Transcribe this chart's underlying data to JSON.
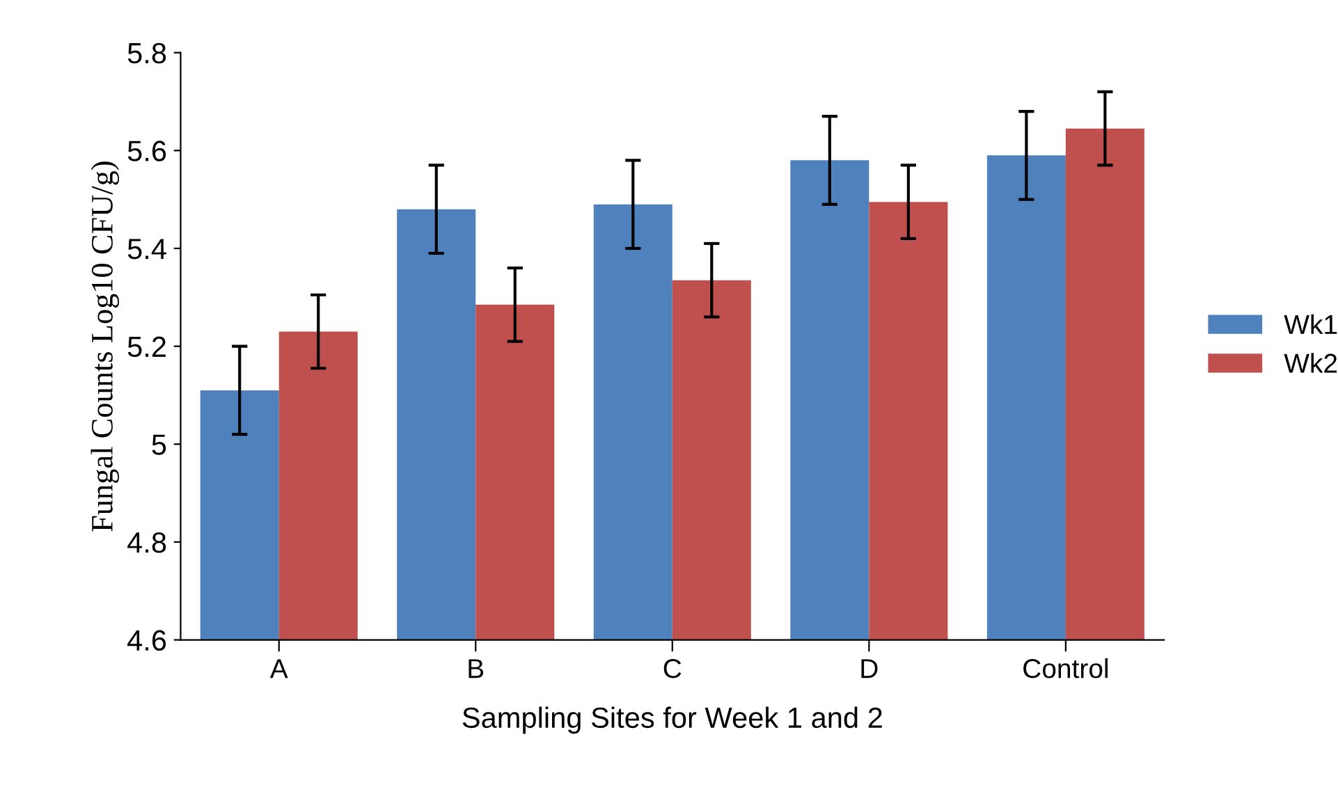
{
  "chart_data": {
    "type": "bar",
    "xlabel": "Sampling Sites for Week 1 and 2",
    "ylabel": "Fungal Counts Log10 CFU/g)",
    "categories": [
      "A",
      "B",
      "C",
      "D",
      "Control"
    ],
    "series": [
      {
        "name": "Wk1",
        "color": "#4f81bd",
        "values": [
          5.11,
          5.48,
          5.49,
          5.58,
          5.59
        ],
        "errors": [
          0.09,
          0.09,
          0.09,
          0.09,
          0.09
        ]
      },
      {
        "name": "Wk2",
        "color": "#c0504d",
        "values": [
          5.23,
          5.285,
          5.335,
          5.495,
          5.645
        ],
        "errors": [
          0.075,
          0.075,
          0.075,
          0.075,
          0.075
        ]
      }
    ],
    "ylim": [
      4.6,
      5.8
    ],
    "yticks": [
      4.6,
      4.8,
      5,
      5.2,
      5.4,
      5.6,
      5.8
    ],
    "grid": false,
    "legend": "right"
  }
}
